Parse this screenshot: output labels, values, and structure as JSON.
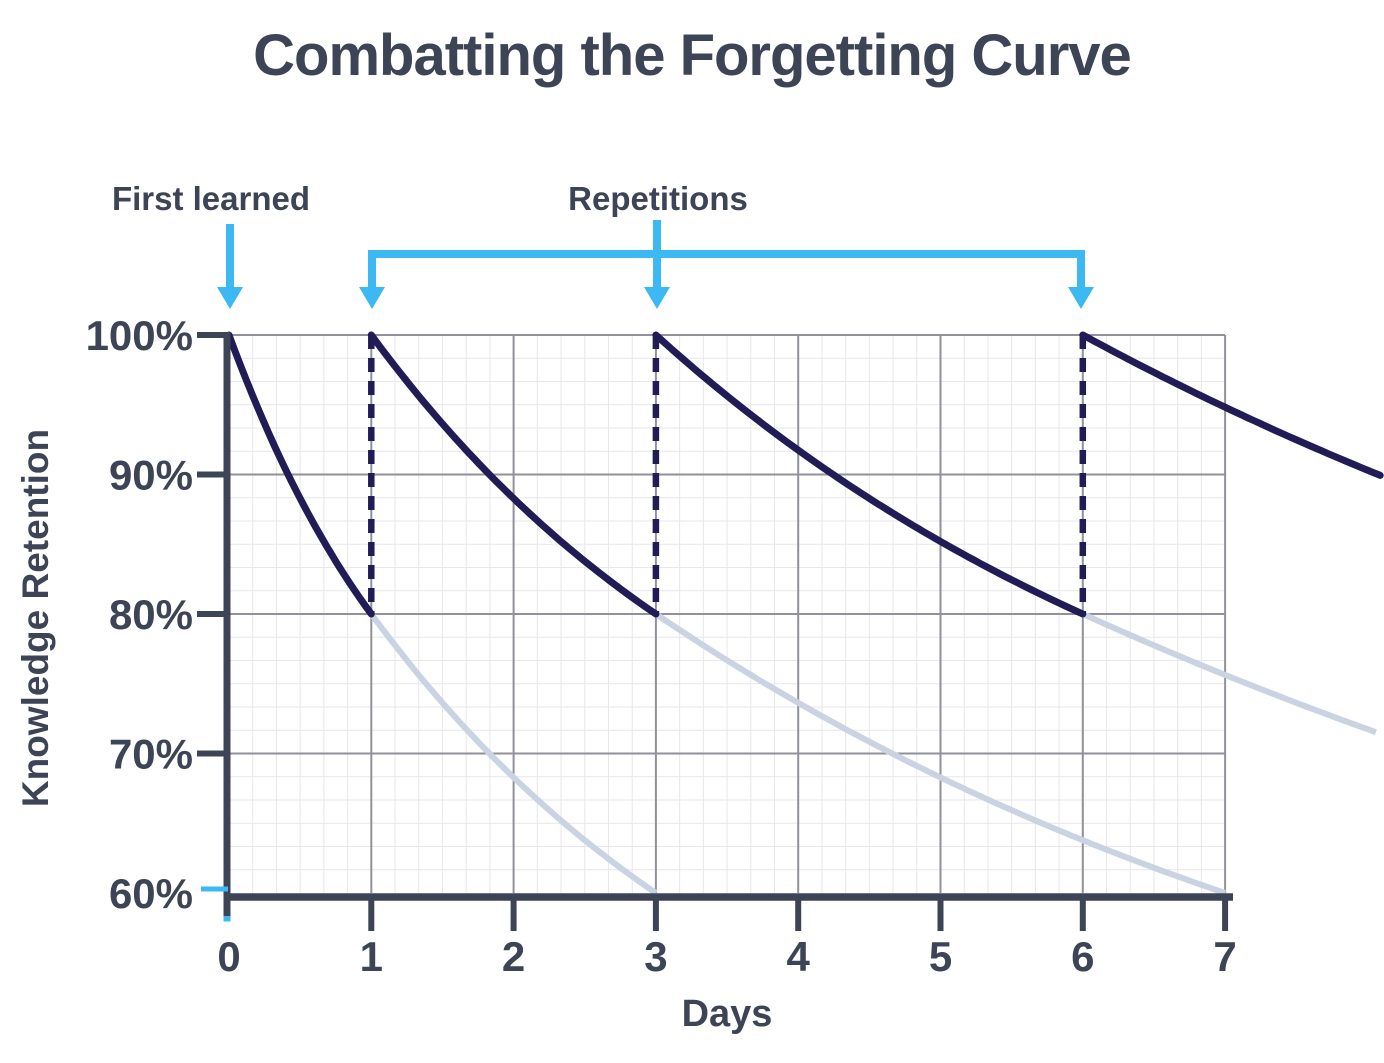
{
  "chart_data": {
    "type": "line",
    "title": "Combatting the Forgetting Curve",
    "xlabel": "Days",
    "ylabel": "Knowledge Retention",
    "x_range": [
      0,
      7
    ],
    "y_range": [
      60,
      100
    ],
    "x_ticks": [
      "0",
      "1",
      "2",
      "3",
      "4",
      "5",
      "6",
      "7"
    ],
    "x_tick_values": [
      0,
      1,
      2,
      3,
      4,
      5,
      6,
      7
    ],
    "y_ticks": [
      "100%",
      "90%",
      "80%",
      "70%",
      "60%"
    ],
    "y_tick_values": [
      100,
      90,
      80,
      70,
      60
    ],
    "grid": {
      "major": true,
      "minor_divisions_per_major": 6
    },
    "legend": "none",
    "annotations": {
      "first_learned": {
        "label": "First learned",
        "day": 0
      },
      "repetitions": {
        "label": "Repetitions",
        "arrow_days": [
          1,
          3,
          6
        ],
        "label_day": 3,
        "connector_from_day": 1,
        "connector_to_day": 6
      }
    },
    "series": [
      {
        "name": "retention-with-repetition",
        "color": "#211c56",
        "style": "solid",
        "stroke_width": 7,
        "asymptote_pct": 60,
        "segments": [
          {
            "start_day": 0,
            "start_pct": 100,
            "end_day": 1,
            "end_pct": 80,
            "half_life_days": 1
          },
          {
            "start_day": 1,
            "start_pct": 100,
            "end_day": 3,
            "end_pct": 80,
            "half_life_days": 2
          },
          {
            "start_day": 3,
            "start_pct": 100,
            "end_day": 6,
            "end_pct": 80,
            "half_life_days": 3
          },
          {
            "start_day": 6,
            "start_pct": 100,
            "end_day": 8.09,
            "end_pct": 89.9,
            "half_life_days": 5
          }
        ]
      },
      {
        "name": "forgetting-without-repetition",
        "color": "#c9d3e2",
        "style": "solid",
        "stroke_width": 6,
        "asymptote_pct": 40,
        "segments": [
          {
            "start_day": 1,
            "start_pct": 80,
            "end_day": 3,
            "end_pct": 60,
            "half_life_days": 2
          },
          {
            "start_day": 3,
            "start_pct": 80,
            "end_day": 7,
            "end_pct": 60,
            "half_life_days": 4
          },
          {
            "start_day": 6,
            "start_pct": 80,
            "end_day": 8.06,
            "end_pct": 71.4,
            "half_life_days": 6
          }
        ]
      }
    ],
    "repetition_jumps": {
      "name": "review-boost-dashed",
      "days": [
        1,
        3,
        6
      ],
      "from_pct": 80,
      "to_pct": 100,
      "color": "#211c56",
      "dash": [
        14,
        9
      ]
    },
    "colors": {
      "curve_dark": "#211c56",
      "curve_light": "#c9d3e2",
      "axis": "#3c4455",
      "text": "#3c4455",
      "arrow": "#3cb9f2",
      "grid_major": "#90919a",
      "grid_minor": "#e7e7ec",
      "plot_bg": "#ffffff",
      "accent_tick": "#3cb9f2"
    }
  }
}
